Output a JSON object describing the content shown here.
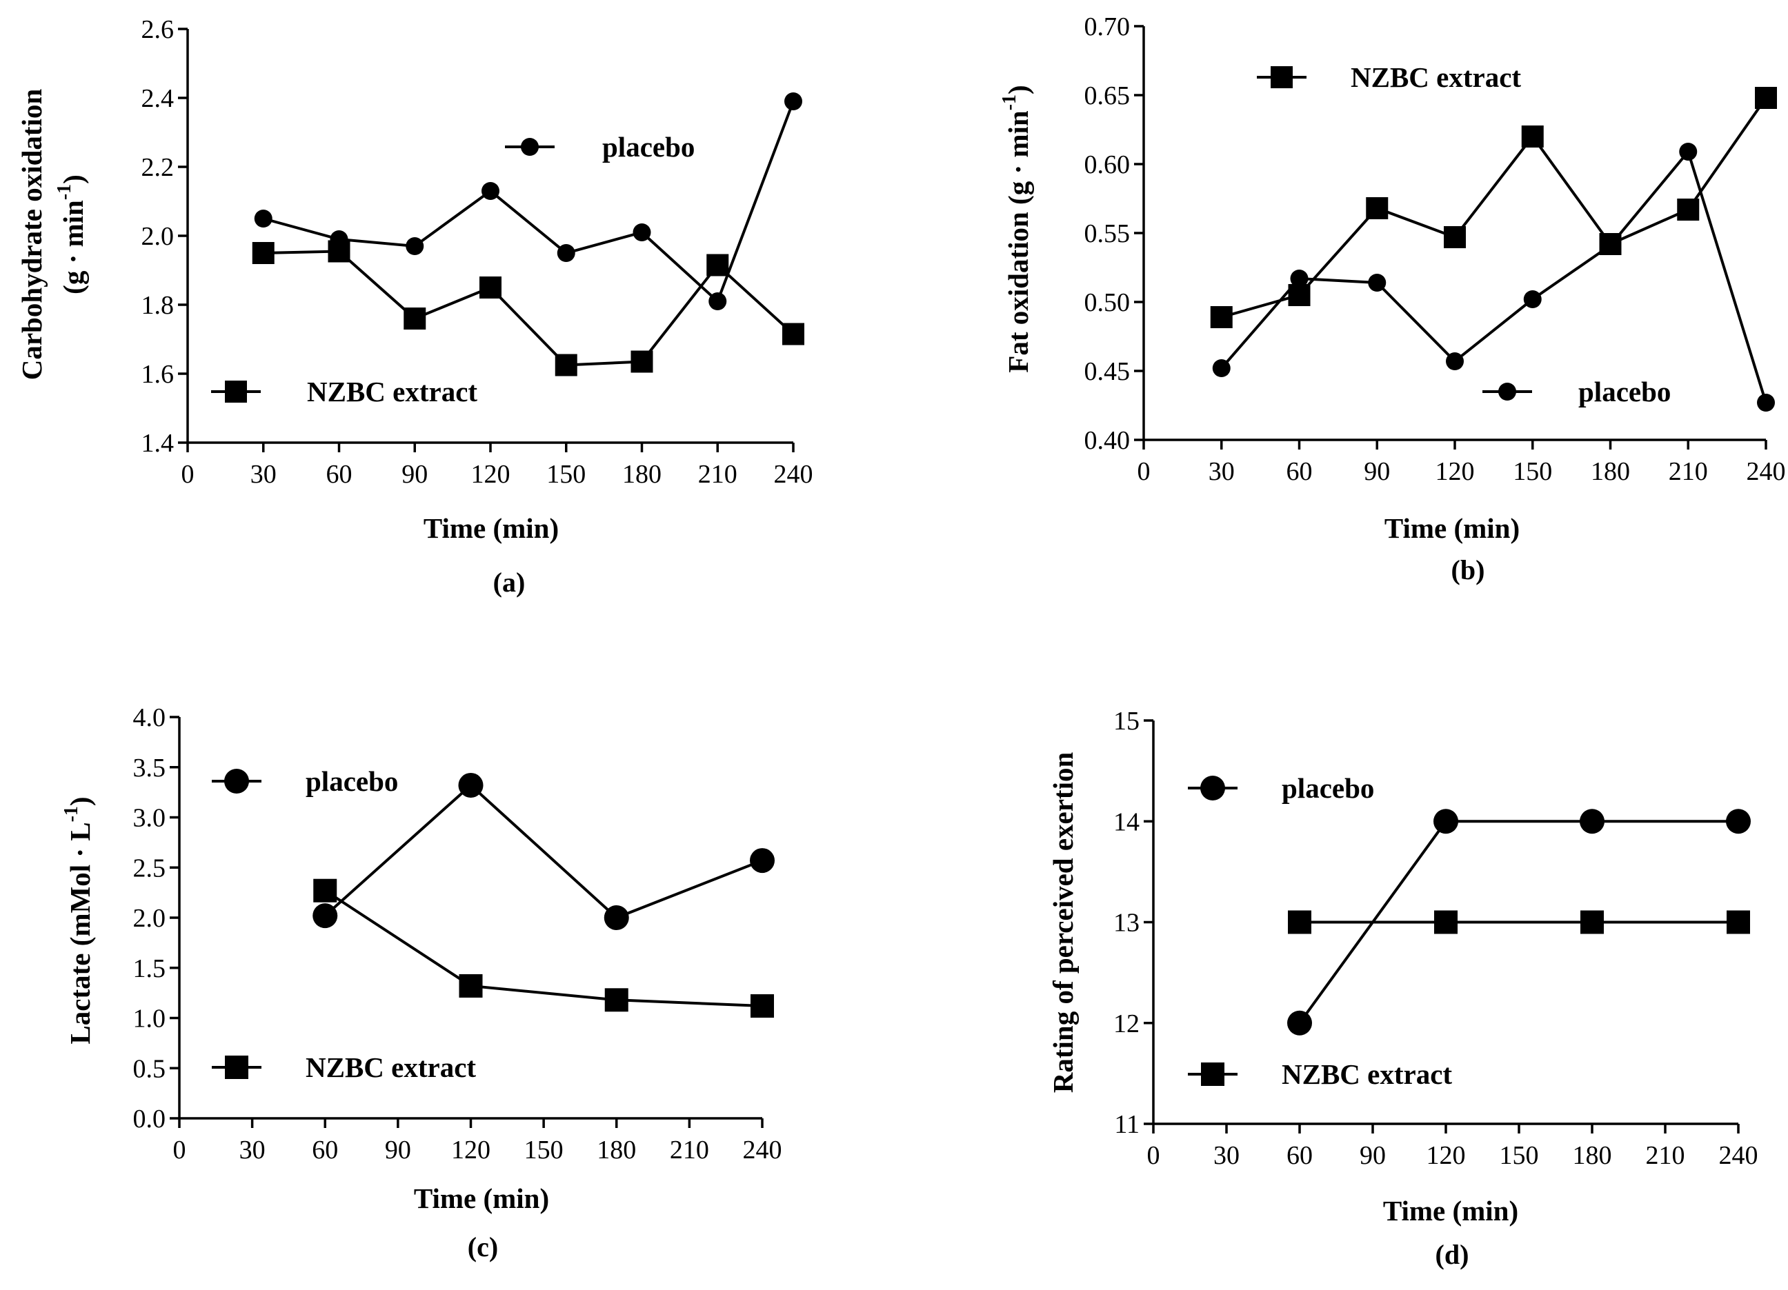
{
  "chart_data": [
    {
      "type": "line",
      "panel_label": "(a)",
      "xlabel": "Time (min)",
      "ylabel_line1": "Carbohydrate oxidation",
      "ylabel_line2": "(g · min",
      "ylabel_sup": "-1",
      "ylabel_close": ")",
      "xlim": [
        0,
        240
      ],
      "ylim": [
        1.4,
        2.6
      ],
      "xticks": [
        0,
        30,
        60,
        90,
        120,
        150,
        180,
        210,
        240
      ],
      "yticks": [
        "1.4",
        "1.6",
        "1.8",
        "2.0",
        "2.2",
        "2.4",
        "2.6"
      ],
      "series": [
        {
          "name": "placebo",
          "marker": "circle",
          "x": [
            30,
            60,
            90,
            120,
            150,
            180,
            210,
            240
          ],
          "values": [
            2.05,
            1.99,
            1.97,
            2.13,
            1.95,
            2.01,
            1.81,
            2.39
          ]
        },
        {
          "name": "NZBC extract",
          "marker": "square",
          "x": [
            30,
            60,
            90,
            120,
            150,
            180,
            210,
            240
          ],
          "values": [
            1.95,
            1.955,
            1.76,
            1.85,
            1.625,
            1.635,
            1.915,
            1.715
          ]
        }
      ],
      "legend": [
        {
          "label": "placebo",
          "marker": "circle",
          "position": "top-center"
        },
        {
          "label": "NZBC extract",
          "marker": "square",
          "position": "bottom-left"
        }
      ]
    },
    {
      "type": "line",
      "panel_label": "(b)",
      "xlabel": "Time (min)",
      "ylabel_line1": "Fat oxidation (g · min",
      "ylabel_sup": "-1",
      "ylabel_close": ")",
      "xlim": [
        0,
        240
      ],
      "ylim": [
        0.4,
        0.7
      ],
      "xticks": [
        0,
        30,
        60,
        90,
        120,
        150,
        180,
        210,
        240
      ],
      "yticks": [
        "0.40",
        "0.45",
        "0.50",
        "0.55",
        "0.60",
        "0.65",
        "0.70"
      ],
      "series": [
        {
          "name": "placebo",
          "marker": "circle",
          "x": [
            30,
            60,
            90,
            120,
            150,
            180,
            210,
            240
          ],
          "values": [
            0.452,
            0.517,
            0.514,
            0.457,
            0.502,
            0.541,
            0.609,
            0.427
          ]
        },
        {
          "name": "NZBC extract",
          "marker": "square",
          "x": [
            30,
            60,
            90,
            120,
            150,
            180,
            210,
            240
          ],
          "values": [
            0.489,
            0.505,
            0.568,
            0.547,
            0.62,
            0.542,
            0.567,
            0.648
          ]
        }
      ],
      "legend": [
        {
          "label": "NZBC extract",
          "marker": "square",
          "position": "top-left"
        },
        {
          "label": "placebo",
          "marker": "circle",
          "position": "bottom-right"
        }
      ]
    },
    {
      "type": "line",
      "panel_label": "(c)",
      "xlabel": "Time (min)",
      "ylabel_line1": "Lactate (mMol · L",
      "ylabel_sup": "-1",
      "ylabel_close": ")",
      "xlim": [
        0,
        240
      ],
      "ylim": [
        0.0,
        4.0
      ],
      "xticks": [
        0,
        30,
        60,
        90,
        120,
        150,
        180,
        210,
        240
      ],
      "yticks": [
        "0.0",
        "0.5",
        "1.0",
        "1.5",
        "2.0",
        "2.5",
        "3.0",
        "3.5",
        "4.0"
      ],
      "series": [
        {
          "name": "placebo",
          "marker": "circle",
          "x": [
            60,
            120,
            180,
            240
          ],
          "values": [
            2.02,
            3.32,
            2.0,
            2.57
          ]
        },
        {
          "name": "NZBC extract",
          "marker": "square",
          "x": [
            60,
            120,
            180,
            240
          ],
          "values": [
            2.27,
            1.32,
            1.18,
            1.12
          ]
        }
      ],
      "legend": [
        {
          "label": "placebo",
          "marker": "circle",
          "position": "top-left"
        },
        {
          "label": "NZBC extract",
          "marker": "square",
          "position": "bottom-left"
        }
      ]
    },
    {
      "type": "line",
      "panel_label": "(d)",
      "xlabel": "Time (min)",
      "ylabel_line1": "Rating of perceived exertion",
      "xlim": [
        0,
        240
      ],
      "ylim": [
        11,
        15
      ],
      "xticks": [
        0,
        30,
        60,
        90,
        120,
        150,
        180,
        210,
        240
      ],
      "yticks": [
        "11",
        "12",
        "13",
        "14",
        "15"
      ],
      "series": [
        {
          "name": "placebo",
          "marker": "circle",
          "x": [
            60,
            120,
            180,
            240
          ],
          "values": [
            12,
            14,
            14,
            14
          ]
        },
        {
          "name": "NZBC extract",
          "marker": "square",
          "x": [
            60,
            120,
            180,
            240
          ],
          "values": [
            13,
            13,
            13,
            13
          ]
        }
      ],
      "legend": [
        {
          "label": "placebo",
          "marker": "circle",
          "position": "top-left"
        },
        {
          "label": "NZBC extract",
          "marker": "square",
          "position": "bottom-left"
        }
      ]
    }
  ]
}
